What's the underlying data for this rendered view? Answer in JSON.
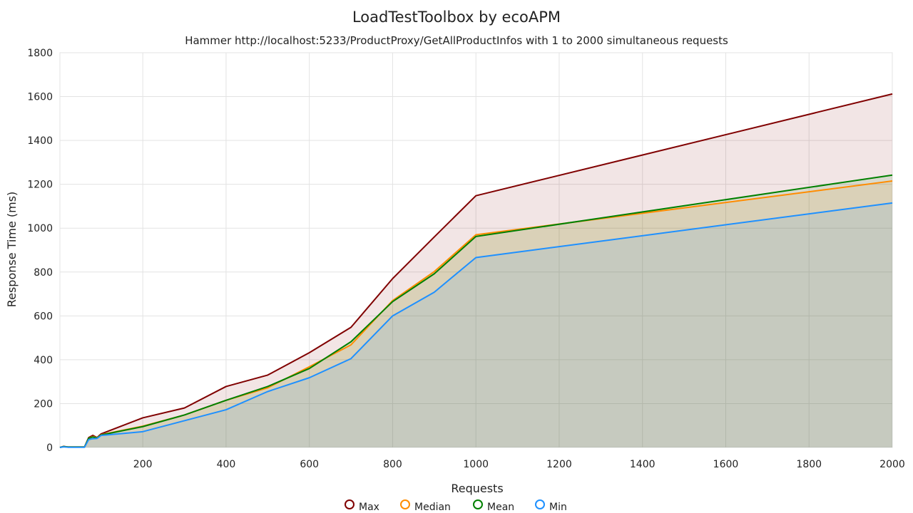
{
  "chart_data": {
    "type": "area",
    "title": "LoadTestToolbox by ecoAPM",
    "subtitle": "Hammer http://localhost:5233/ProductProxy/GetAllProductInfos with 1 to 2000 simultaneous requests",
    "xlabel": "Requests",
    "ylabel": "Response Time (ms)",
    "xlim": [
      1,
      2000
    ],
    "ylim": [
      0,
      1800
    ],
    "xticks": [
      200,
      400,
      600,
      800,
      1000,
      1200,
      1400,
      1600,
      1800,
      2000
    ],
    "yticks": [
      0,
      200,
      400,
      600,
      800,
      1000,
      1200,
      1400,
      1600,
      1800
    ],
    "grid": true,
    "legend_position": "bottom",
    "x": [
      1,
      10,
      20,
      30,
      40,
      50,
      60,
      70,
      80,
      90,
      100,
      200,
      300,
      400,
      500,
      600,
      700,
      800,
      900,
      1000,
      2000
    ],
    "series": [
      {
        "name": "Max",
        "color": "#800000",
        "values": [
          0,
          5,
          2,
          2,
          2,
          2,
          2,
          45,
          55,
          45,
          62,
          135,
          180,
          278,
          330,
          432,
          548,
          770,
          960,
          1148,
          1612
        ]
      },
      {
        "name": "Median",
        "color": "#ff8c00",
        "values": [
          0,
          4,
          2,
          2,
          2,
          2,
          2,
          42,
          50,
          44,
          58,
          97,
          148,
          215,
          272,
          368,
          468,
          670,
          802,
          970,
          1215
        ]
      },
      {
        "name": "Mean",
        "color": "#008000",
        "values": [
          0,
          4,
          2,
          2,
          2,
          2,
          2,
          42,
          48,
          43,
          57,
          95,
          148,
          215,
          278,
          360,
          482,
          665,
          792,
          962,
          1242
        ]
      },
      {
        "name": "Min",
        "color": "#1e90ff",
        "values": [
          0,
          3,
          1,
          1,
          1,
          1,
          1,
          36,
          40,
          41,
          55,
          72,
          122,
          172,
          255,
          318,
          405,
          600,
          708,
          866,
          1115
        ]
      }
    ]
  }
}
